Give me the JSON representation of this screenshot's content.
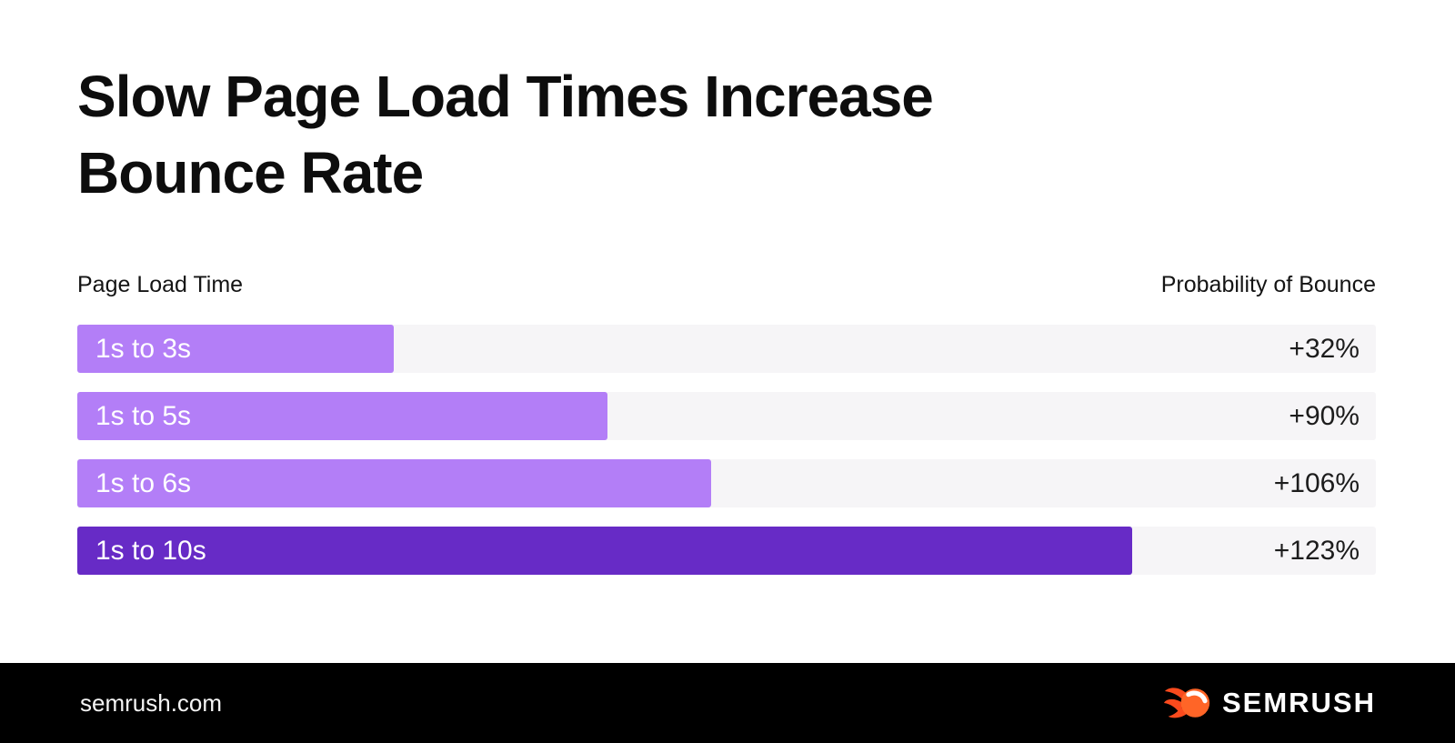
{
  "title": {
    "line1": "Slow Page Load Times Increase",
    "line2": "Bounce Rate"
  },
  "chart_data": {
    "type": "bar",
    "orientation": "horizontal",
    "title": "Slow Page Load Times Increase Bounce Rate",
    "left_header": "Page Load Time",
    "right_header": "Probability of Bounce",
    "categories": [
      "1s to 3s",
      "1s to 5s",
      "1s to 6s",
      "1s to 10s"
    ],
    "values": [
      32,
      90,
      106,
      123
    ],
    "value_unit": "% increase in bounce probability",
    "legend": "none",
    "grid": "off",
    "rows": [
      {
        "label": "1s to 3s",
        "value": 32,
        "value_label": "+32%",
        "bar_pct": 24.4,
        "color": "#b37ef7"
      },
      {
        "label": "1s to 5s",
        "value": 90,
        "value_label": "+90%",
        "bar_pct": 40.8,
        "color": "#b37ef7"
      },
      {
        "label": "1s to 6s",
        "value": 106,
        "value_label": "+106%",
        "bar_pct": 48.8,
        "color": "#b37ef7"
      },
      {
        "label": "1s to 10s",
        "value": 123,
        "value_label": "+123%",
        "bar_pct": 81.2,
        "color": "#672bc6"
      }
    ],
    "colors": {
      "bar_light": "#b37ef7",
      "bar_dark": "#672bc6",
      "track": "#f6f5f7",
      "text": "#0d0d0d"
    }
  },
  "footer": {
    "site": "semrush.com",
    "brand": "SEMRUSH",
    "logo_icon": "semrush-flame-icon",
    "brand_orange": "#ff6527",
    "flame_orange": "#fa4a1d",
    "background": "#000000"
  }
}
